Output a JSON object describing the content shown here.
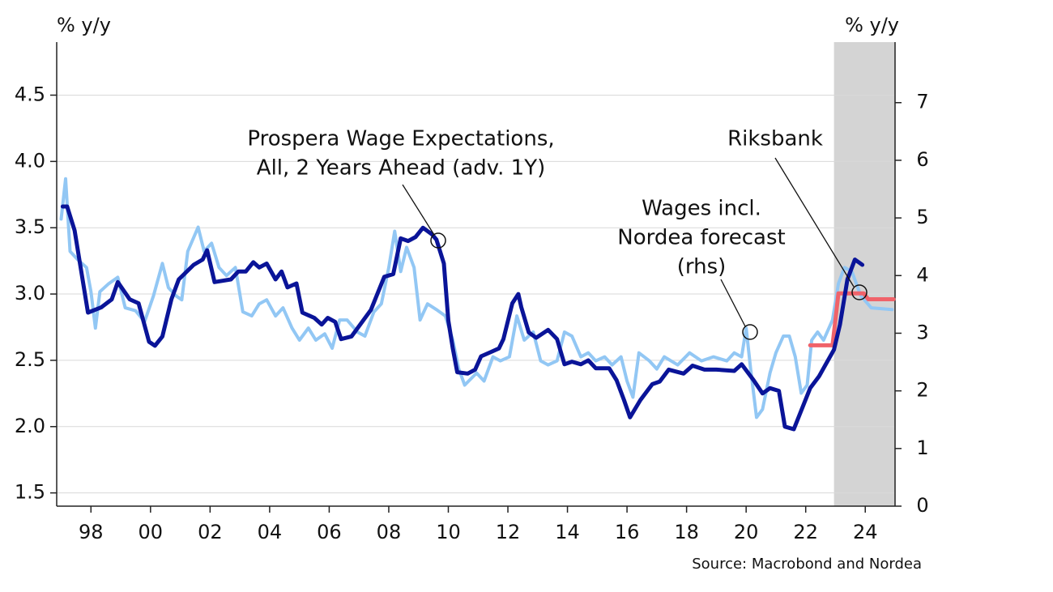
{
  "chart_data": {
    "type": "line",
    "y_label": "% y/y",
    "y2_label": "% y/y",
    "source": "Source: Macrobond and Nordea",
    "xlim": [
      1996.85,
      2025
    ],
    "xticks": [
      {
        "value": 1998,
        "label": "98"
      },
      {
        "value": 2000,
        "label": "00"
      },
      {
        "value": 2002,
        "label": "02"
      },
      {
        "value": 2004,
        "label": "04"
      },
      {
        "value": 2006,
        "label": "06"
      },
      {
        "value": 2008,
        "label": "08"
      },
      {
        "value": 2010,
        "label": "10"
      },
      {
        "value": 2012,
        "label": "12"
      },
      {
        "value": 2014,
        "label": "14"
      },
      {
        "value": 2016,
        "label": "16"
      },
      {
        "value": 2018,
        "label": "18"
      },
      {
        "value": 2020,
        "label": "20"
      },
      {
        "value": 2022,
        "label": "22"
      },
      {
        "value": 2024,
        "label": "24"
      }
    ],
    "ylim": [
      1.4,
      4.9
    ],
    "yticks": [
      1.5,
      {
        "value": 2,
        "label": "2.0"
      },
      2.5,
      {
        "value": 3,
        "label": "3.0"
      },
      3.5,
      {
        "value": 4,
        "label": "4.0"
      },
      4.5
    ],
    "y2lim": [
      0,
      8.05
    ],
    "y2ticks": [
      0,
      1,
      2,
      3,
      4,
      5,
      6,
      7
    ],
    "grid": true,
    "shade": [
      2022.95,
      2025
    ],
    "shade_color": "#d4d4d4",
    "annotations": [
      {
        "lines": [
          "Prospera Wage Expectations,",
          "All, 2 Years Ahead (adv. 1Y)"
        ]
      },
      {
        "lines": [
          "Wages incl.",
          "Nordea forecast",
          "(rhs)"
        ]
      },
      {
        "lines": [
          "Riksbank"
        ]
      }
    ],
    "series": [
      {
        "name": "Wages incl. Nordea forecast (rhs)",
        "color": "#92c7f4",
        "axis": "y2",
        "x": [
          1997.0,
          1997.15,
          1997.3,
          1997.55,
          1997.85,
          1998.0,
          1998.15,
          1998.3,
          1998.6,
          1998.9,
          1999.15,
          1999.5,
          1999.8,
          2000.1,
          2000.4,
          2000.6,
          2000.85,
          2001.05,
          2001.25,
          2001.6,
          2001.8,
          2002.05,
          2002.3,
          2002.55,
          2002.85,
          2003.1,
          2003.4,
          2003.65,
          2003.9,
          2004.2,
          2004.45,
          2004.75,
          2005.0,
          2005.3,
          2005.55,
          2005.85,
          2006.1,
          2006.35,
          2006.6,
          2006.95,
          2007.2,
          2007.5,
          2007.75,
          2008.0,
          2008.2,
          2008.4,
          2008.6,
          2008.85,
          2009.05,
          2009.3,
          2009.6,
          2009.9,
          2010.15,
          2010.35,
          2010.55,
          2010.95,
          2011.2,
          2011.5,
          2011.75,
          2012.05,
          2012.3,
          2012.55,
          2012.85,
          2013.1,
          2013.35,
          2013.65,
          2013.9,
          2014.15,
          2014.45,
          2014.7,
          2014.95,
          2015.25,
          2015.5,
          2015.8,
          2016.0,
          2016.2,
          2016.4,
          2016.75,
          2017.0,
          2017.25,
          2017.7,
          2018.1,
          2018.5,
          2018.9,
          2019.35,
          2019.6,
          2019.85,
          2020.0,
          2020.15,
          2020.35,
          2020.55,
          2020.8,
          2021.0,
          2021.25,
          2021.45,
          2021.65,
          2021.85,
          2022.05,
          2022.2,
          2022.4,
          2022.6,
          2022.9,
          2023.1,
          2023.3,
          2023.55,
          2023.85,
          2024.2,
          2024.9
        ],
        "values": [
          4.98,
          5.68,
          4.42,
          4.28,
          4.14,
          3.72,
          3.09,
          3.72,
          3.86,
          3.97,
          3.44,
          3.39,
          3.2,
          3.65,
          4.21,
          3.79,
          3.65,
          3.58,
          4.42,
          4.84,
          4.42,
          4.56,
          4.14,
          4.0,
          4.14,
          3.37,
          3.3,
          3.51,
          3.58,
          3.3,
          3.44,
          3.09,
          2.88,
          3.09,
          2.88,
          2.99,
          2.74,
          3.23,
          3.23,
          3.02,
          2.95,
          3.37,
          3.51,
          4.14,
          4.77,
          4.07,
          4.49,
          4.14,
          3.23,
          3.51,
          3.41,
          3.3,
          2.88,
          2.38,
          2.1,
          2.31,
          2.17,
          2.59,
          2.52,
          2.59,
          3.3,
          2.88,
          3.02,
          2.52,
          2.45,
          2.52,
          3.02,
          2.95,
          2.59,
          2.66,
          2.52,
          2.59,
          2.45,
          2.59,
          2.17,
          1.89,
          2.66,
          2.52,
          2.38,
          2.59,
          2.45,
          2.66,
          2.52,
          2.59,
          2.52,
          2.66,
          2.59,
          3.09,
          2.38,
          1.54,
          1.68,
          2.31,
          2.66,
          2.95,
          2.95,
          2.59,
          1.96,
          2.1,
          2.88,
          3.02,
          2.88,
          3.23,
          3.86,
          4.14,
          4.07,
          3.65,
          3.44,
          3.41
        ]
      },
      {
        "name": "Riksbank",
        "color": "#f0636a",
        "axis": "y2",
        "x": [
          2022.15,
          2022.9,
          2023.1,
          2023.95,
          2024.1,
          2024.95
        ],
        "values": [
          2.79,
          2.79,
          3.69,
          3.69,
          3.59,
          3.59
        ]
      },
      {
        "name": "Prospera Wage Expectations, All, 2 Years Ahead (adv. 1Y)",
        "color": "#0a1498",
        "axis": "y",
        "x": [
          1997.05,
          1997.2,
          1997.45,
          1997.9,
          1998.35,
          1998.7,
          1998.9,
          1999.3,
          1999.6,
          1999.95,
          2000.15,
          2000.4,
          2000.7,
          2000.95,
          2001.45,
          2001.75,
          2001.9,
          2002.15,
          2002.7,
          2002.95,
          2003.2,
          2003.45,
          2003.65,
          2003.9,
          2004.2,
          2004.4,
          2004.6,
          2004.9,
          2005.1,
          2005.5,
          2005.75,
          2005.95,
          2006.2,
          2006.4,
          2006.75,
          2007.4,
          2007.85,
          2008.15,
          2008.4,
          2008.65,
          2008.9,
          2009.15,
          2009.45,
          2009.6,
          2009.85,
          2010.0,
          2010.15,
          2010.3,
          2010.65,
          2010.9,
          2011.1,
          2011.4,
          2011.7,
          2011.85,
          2012.15,
          2012.35,
          2012.45,
          2012.7,
          2012.95,
          2013.35,
          2013.65,
          2013.9,
          2014.15,
          2014.45,
          2014.7,
          2014.95,
          2015.4,
          2015.65,
          2015.9,
          2016.1,
          2016.45,
          2016.85,
          2017.1,
          2017.4,
          2017.9,
          2018.2,
          2018.6,
          2019.0,
          2019.6,
          2019.85,
          2020.25,
          2020.55,
          2020.8,
          2021.1,
          2021.3,
          2021.6,
          2022.15,
          2022.45,
          2022.95,
          2023.15,
          2023.4,
          2023.65,
          2023.9
        ],
        "values": [
          3.66,
          3.66,
          3.48,
          2.86,
          2.9,
          2.96,
          3.09,
          2.96,
          2.93,
          2.64,
          2.61,
          2.68,
          2.96,
          3.11,
          3.22,
          3.26,
          3.33,
          3.09,
          3.11,
          3.17,
          3.17,
          3.24,
          3.2,
          3.23,
          3.11,
          3.17,
          3.05,
          3.08,
          2.86,
          2.82,
          2.77,
          2.82,
          2.79,
          2.66,
          2.68,
          2.88,
          3.13,
          3.15,
          3.42,
          3.4,
          3.43,
          3.5,
          3.45,
          3.41,
          3.23,
          2.8,
          2.59,
          2.41,
          2.4,
          2.43,
          2.53,
          2.56,
          2.59,
          2.66,
          2.93,
          3.0,
          2.9,
          2.71,
          2.67,
          2.73,
          2.66,
          2.47,
          2.49,
          2.47,
          2.5,
          2.44,
          2.44,
          2.35,
          2.2,
          2.07,
          2.2,
          2.32,
          2.34,
          2.43,
          2.4,
          2.46,
          2.43,
          2.43,
          2.42,
          2.47,
          2.35,
          2.25,
          2.29,
          2.27,
          2.0,
          1.98,
          2.29,
          2.38,
          2.58,
          2.77,
          3.11,
          3.26,
          3.22
        ]
      }
    ]
  }
}
